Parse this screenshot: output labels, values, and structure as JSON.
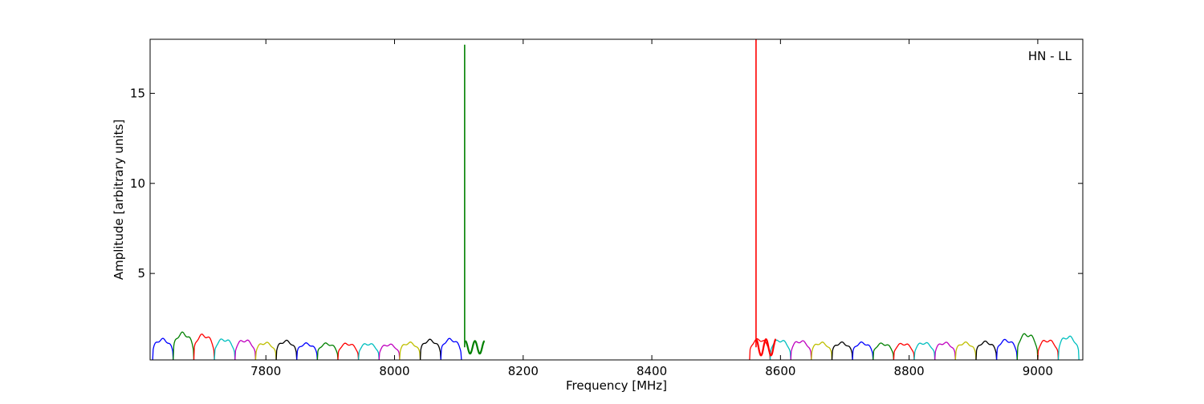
{
  "chart_data": {
    "type": "line",
    "annotation": "HN - LL",
    "xlabel": "Frequency [MHz]",
    "ylabel": "Amplitude [arbitrary units]",
    "xlim": [
      7620,
      9070
    ],
    "ylim": [
      0.2,
      18.0
    ],
    "xticks": [
      7800,
      8000,
      8200,
      8400,
      8600,
      8800,
      9000
    ],
    "yticks": [
      5,
      10,
      15
    ],
    "grid": false,
    "legend": "none",
    "colors": [
      "#0000ff",
      "#008000",
      "#ff0000",
      "#00bfbf",
      "#bf00bf",
      "#bfbf00",
      "#000000"
    ],
    "channel_width_mhz": 32,
    "channels": [
      {
        "start": 7624,
        "color": "#0000ff",
        "peak": 1.4
      },
      {
        "start": 7656,
        "color": "#008000",
        "peak": 1.75
      },
      {
        "start": 7688,
        "color": "#ff0000",
        "peak": 1.65
      },
      {
        "start": 7720,
        "color": "#00bfbf",
        "peak": 1.4
      },
      {
        "start": 7752,
        "color": "#bf00bf",
        "peak": 1.35
      },
      {
        "start": 7784,
        "color": "#bfbf00",
        "peak": 1.2
      },
      {
        "start": 7816,
        "color": "#000000",
        "peak": 1.3
      },
      {
        "start": 7848,
        "color": "#0000ff",
        "peak": 1.15
      },
      {
        "start": 7880,
        "color": "#008000",
        "peak": 1.15
      },
      {
        "start": 7912,
        "color": "#ff0000",
        "peak": 1.15
      },
      {
        "start": 7944,
        "color": "#00bfbf",
        "peak": 1.15
      },
      {
        "start": 7976,
        "color": "#bf00bf",
        "peak": 1.1
      },
      {
        "start": 8008,
        "color": "#bfbf00",
        "peak": 1.2
      },
      {
        "start": 8040,
        "color": "#000000",
        "peak": 1.35
      },
      {
        "start": 8072,
        "color": "#0000ff",
        "peak": 1.4
      },
      {
        "start": 8552,
        "color": "#ff0000",
        "peak": 1.4
      },
      {
        "start": 8584,
        "color": "#00bfbf",
        "peak": 1.35
      },
      {
        "start": 8616,
        "color": "#bf00bf",
        "peak": 1.3
      },
      {
        "start": 8648,
        "color": "#bfbf00",
        "peak": 1.2
      },
      {
        "start": 8680,
        "color": "#000000",
        "peak": 1.2
      },
      {
        "start": 8712,
        "color": "#0000ff",
        "peak": 1.2
      },
      {
        "start": 8744,
        "color": "#008000",
        "peak": 1.15
      },
      {
        "start": 8776,
        "color": "#ff0000",
        "peak": 1.15
      },
      {
        "start": 8808,
        "color": "#00bfbf",
        "peak": 1.2
      },
      {
        "start": 8840,
        "color": "#bf00bf",
        "peak": 1.2
      },
      {
        "start": 8872,
        "color": "#bfbf00",
        "peak": 1.2
      },
      {
        "start": 8904,
        "color": "#000000",
        "peak": 1.25
      },
      {
        "start": 8936,
        "color": "#0000ff",
        "peak": 1.35
      },
      {
        "start": 8968,
        "color": "#008000",
        "peak": 1.7
      },
      {
        "start": 9000,
        "color": "#ff0000",
        "peak": 1.35
      },
      {
        "start": 9032,
        "color": "#00bfbf",
        "peak": 1.55
      }
    ],
    "spikes": [
      {
        "x": 8109,
        "y": 17.7,
        "color": "#008000"
      },
      {
        "x": 8562,
        "y": 18.0,
        "color": "#ff0000"
      }
    ],
    "ripples": [
      {
        "start": 8110,
        "end": 8140,
        "color": "#008000",
        "base": 0.9,
        "amp": 0.35
      },
      {
        "start": 8562,
        "end": 8593,
        "color": "#ff0000",
        "base": 0.9,
        "amp": 0.45
      }
    ]
  }
}
